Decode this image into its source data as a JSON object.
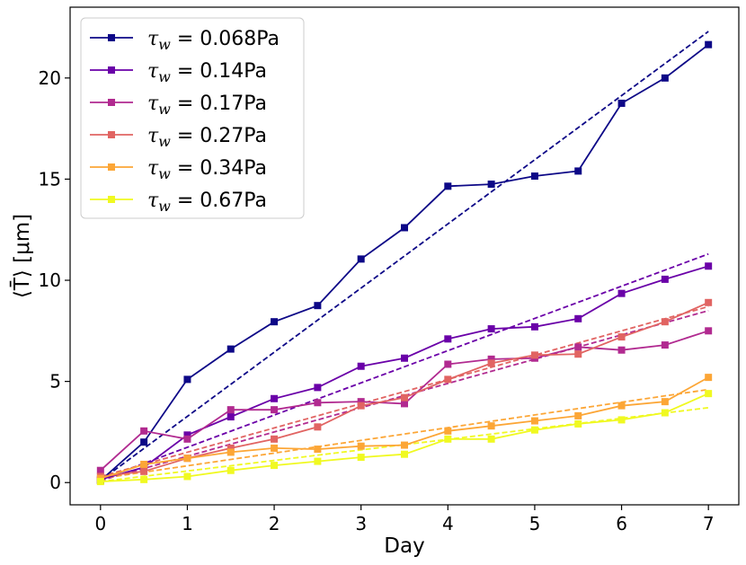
{
  "chart_data": {
    "type": "line",
    "title": "",
    "xlabel": "Day",
    "ylabel": "⟨T̄⟩ [μm]",
    "xlim": [
      -0.35,
      7.35
    ],
    "ylim": [
      -1.1,
      23.5
    ],
    "xticks": [
      0,
      1,
      2,
      3,
      4,
      5,
      6,
      7
    ],
    "yticks": [
      0,
      5,
      10,
      15,
      20
    ],
    "legend_position": "top-left",
    "x": [
      0,
      0.5,
      1,
      1.5,
      2,
      2.5,
      3,
      3.5,
      4,
      4.5,
      5,
      5.5,
      6,
      6.5,
      7
    ],
    "series": [
      {
        "name": "τw = 0.068Pa",
        "legend_value": "0.068Pa",
        "color": "#0d0887",
        "values": [
          0.1,
          2.0,
          5.1,
          6.6,
          7.95,
          8.75,
          11.05,
          12.6,
          14.65,
          14.75,
          15.15,
          15.4,
          18.75,
          20.0,
          21.65
        ],
        "fit_end": 22.3
      },
      {
        "name": "τw = 0.14Pa",
        "legend_value": "0.14Pa",
        "color": "#6a00a8",
        "values": [
          0.15,
          0.75,
          2.35,
          3.25,
          4.15,
          4.7,
          5.75,
          6.15,
          7.1,
          7.6,
          7.7,
          8.1,
          9.35,
          10.05,
          10.7
        ],
        "fit_end": 11.3
      },
      {
        "name": "τw = 0.17Pa",
        "legend_value": "0.17Pa",
        "color": "#b12a90",
        "values": [
          0.6,
          2.55,
          2.15,
          3.6,
          3.6,
          3.95,
          4.0,
          3.9,
          5.85,
          6.1,
          6.15,
          6.7,
          6.55,
          6.8,
          7.5
        ],
        "fit_end": 8.5
      },
      {
        "name": "τw = 0.27Pa",
        "legend_value": "0.27Pa",
        "color": "#e16462",
        "values": [
          0.3,
          0.55,
          1.2,
          1.7,
          2.15,
          2.75,
          3.8,
          4.2,
          5.1,
          5.9,
          6.3,
          6.35,
          7.2,
          7.95,
          8.9
        ],
        "fit_end": 8.7
      },
      {
        "name": "τw = 0.34Pa",
        "legend_value": "0.34Pa",
        "color": "#fca636",
        "values": [
          0.2,
          0.9,
          1.2,
          1.5,
          1.7,
          1.65,
          1.8,
          1.85,
          2.55,
          2.8,
          3.05,
          3.3,
          3.8,
          4.0,
          5.2
        ],
        "fit_end": 4.6
      },
      {
        "name": "τw = 0.67Pa",
        "legend_value": "0.67Pa",
        "color": "#f0f921",
        "values": [
          0.05,
          0.15,
          0.3,
          0.6,
          0.85,
          1.05,
          1.25,
          1.4,
          2.15,
          2.15,
          2.6,
          2.9,
          3.1,
          3.45,
          4.4
        ],
        "fit_end": 3.7
      }
    ]
  }
}
